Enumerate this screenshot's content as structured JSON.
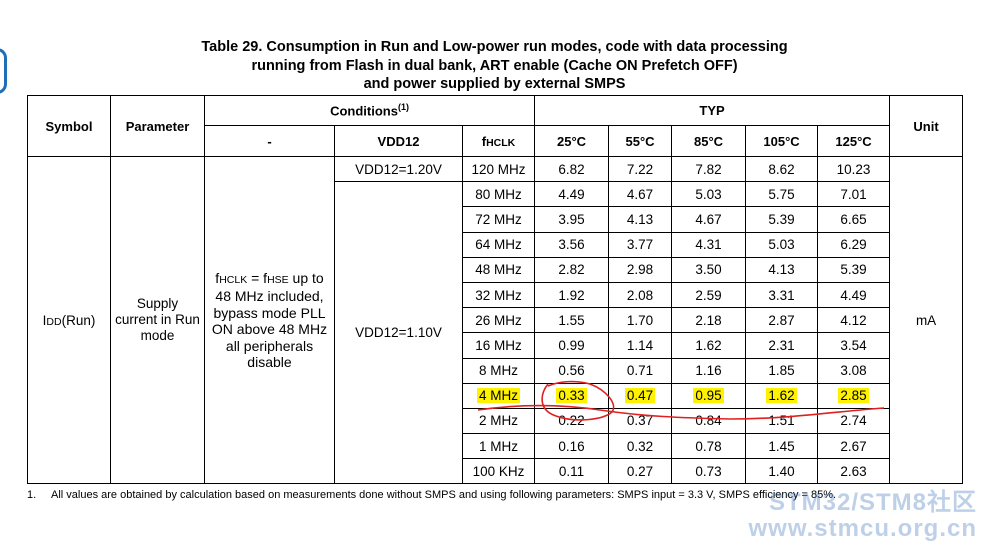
{
  "title_lines": [
    "Table 29. Consumption in Run and Low-power run modes, code with data processing",
    "running from Flash in dual bank, ART enable (Cache ON Prefetch OFF)",
    "and power supplied by external SMPS"
  ],
  "headers": {
    "symbol": "Symbol",
    "parameter": "Parameter",
    "conditions": "Conditions",
    "conditions_note": "(1)",
    "typ": "TYP",
    "unit": "Unit",
    "dash": "-",
    "vdd12": "VDD12",
    "fhclk_f": "f",
    "fhclk_sub": "HCLK",
    "temps": [
      "25°C",
      "55°C",
      "85°C",
      "105°C",
      "125°C"
    ]
  },
  "symbol": {
    "main": "I",
    "sub": "DD",
    "suffix": "(Run)"
  },
  "parameter_lines": [
    "Supply",
    "current in Run",
    "mode"
  ],
  "condition": {
    "f1": "f",
    "s1": "HCLK",
    "eq": " = f",
    "s2": "HSE",
    "tail": " up to",
    "lines": [
      "48 MHz included,",
      "bypass mode PLL",
      "ON above 48 MHz",
      "all peripherals",
      "disable"
    ]
  },
  "vdd_values": [
    "VDD12=1.20V",
    "VDD12=1.10V"
  ],
  "unit": "mA",
  "rows": [
    {
      "freq": "120 MHz",
      "vals": [
        "6.82",
        "7.22",
        "7.82",
        "8.62",
        "10.23"
      ]
    },
    {
      "freq": "80 MHz",
      "vals": [
        "4.49",
        "4.67",
        "5.03",
        "5.75",
        "7.01"
      ]
    },
    {
      "freq": "72 MHz",
      "vals": [
        "3.95",
        "4.13",
        "4.67",
        "5.39",
        "6.65"
      ]
    },
    {
      "freq": "64 MHz",
      "vals": [
        "3.56",
        "3.77",
        "4.31",
        "5.03",
        "6.29"
      ]
    },
    {
      "freq": "48 MHz",
      "vals": [
        "2.82",
        "2.98",
        "3.50",
        "4.13",
        "5.39"
      ]
    },
    {
      "freq": "32 MHz",
      "vals": [
        "1.92",
        "2.08",
        "2.59",
        "3.31",
        "4.49"
      ]
    },
    {
      "freq": "26 MHz",
      "vals": [
        "1.55",
        "1.70",
        "2.18",
        "2.87",
        "4.12"
      ]
    },
    {
      "freq": "16 MHz",
      "vals": [
        "0.99",
        "1.14",
        "1.62",
        "2.31",
        "3.54"
      ]
    },
    {
      "freq": "8 MHz",
      "vals": [
        "0.56",
        "0.71",
        "1.16",
        "1.85",
        "3.08"
      ]
    },
    {
      "freq": "4 MHz",
      "vals": [
        "0.33",
        "0.47",
        "0.95",
        "1.62",
        "2.85"
      ],
      "highlight": true
    },
    {
      "freq": "2 MHz",
      "vals": [
        "0.22",
        "0.37",
        "0.84",
        "1.51",
        "2.74"
      ]
    },
    {
      "freq": "1 MHz",
      "vals": [
        "0.16",
        "0.32",
        "0.78",
        "1.45",
        "2.67"
      ]
    },
    {
      "freq": "100 KHz",
      "vals": [
        "0.11",
        "0.27",
        "0.73",
        "1.40",
        "2.63"
      ]
    }
  ],
  "footnote": {
    "number": "1.",
    "text": "All values are obtained by calculation based on measurements done without SMPS and using following parameters: SMPS input = 3.3 V, SMPS efficiency = 85%."
  },
  "watermark": [
    "STM32/STM8社区",
    "www.stmcu.org.cn"
  ],
  "colors": {
    "highlight": "#fff200",
    "ink": "#e02020"
  }
}
